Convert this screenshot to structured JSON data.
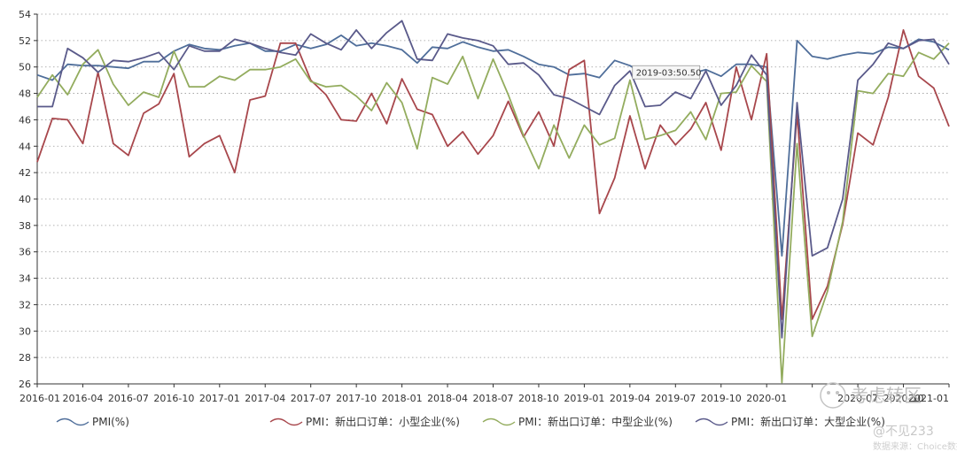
{
  "chart_data": {
    "type": "line",
    "grid": "horizontal-dotted",
    "ylim": [
      26,
      54
    ],
    "yticks": [
      26,
      28,
      30,
      32,
      34,
      36,
      38,
      40,
      42,
      44,
      46,
      48,
      50,
      52,
      54
    ],
    "x": [
      "2016-01",
      "2016-02",
      "2016-03",
      "2016-04",
      "2016-05",
      "2016-06",
      "2016-07",
      "2016-08",
      "2016-09",
      "2016-10",
      "2016-11",
      "2016-12",
      "2017-01",
      "2017-02",
      "2017-03",
      "2017-04",
      "2017-05",
      "2017-06",
      "2017-07",
      "2017-08",
      "2017-09",
      "2017-10",
      "2017-11",
      "2017-12",
      "2018-01",
      "2018-02",
      "2018-03",
      "2018-04",
      "2018-05",
      "2018-06",
      "2018-07",
      "2018-08",
      "2018-09",
      "2018-10",
      "2018-11",
      "2018-12",
      "2019-01",
      "2019-02",
      "2019-03",
      "2019-04",
      "2019-05",
      "2019-06",
      "2019-07",
      "2019-08",
      "2019-09",
      "2019-10",
      "2019-11",
      "2019-12",
      "2020-01",
      "2020-02",
      "2020-03",
      "2020-04",
      "2020-05",
      "2020-06",
      "2020-07",
      "2020-08",
      "2020-09",
      "2020-10",
      "2020-11",
      "2020-12",
      "2021-01"
    ],
    "xtick_labels": [
      "2016-01",
      "2016-04",
      "2016-07",
      "2016-10",
      "2017-01",
      "2017-04",
      "2017-07",
      "2017-10",
      "2018-01",
      "2018-04",
      "2018-07",
      "2018-10",
      "2019-01",
      "2019-04",
      "2019-07",
      "2019-10",
      "2020-01",
      "",
      "2020-07",
      "2020-10",
      "2021-01"
    ],
    "series": [
      {
        "name": "PMI(%)",
        "color": "#4f6e9a",
        "values": [
          49.4,
          49.0,
          50.2,
          50.1,
          50.1,
          50.0,
          49.9,
          50.4,
          50.4,
          51.2,
          51.7,
          51.4,
          51.3,
          51.6,
          51.8,
          51.2,
          51.2,
          51.7,
          51.4,
          51.7,
          52.4,
          51.6,
          51.8,
          51.6,
          51.3,
          50.3,
          51.5,
          51.4,
          51.9,
          51.5,
          51.2,
          51.3,
          50.8,
          50.2,
          50.0,
          49.4,
          49.5,
          49.2,
          50.5,
          50.1,
          49.4,
          49.4,
          49.7,
          49.5,
          49.8,
          49.3,
          50.2,
          50.2,
          50.0,
          35.7,
          52.0,
          50.8,
          50.6,
          50.9,
          51.1,
          51.0,
          51.5,
          51.4,
          52.1,
          51.9,
          51.3
        ]
      },
      {
        "name": "PMI：新出口订单：小型企业(%)",
        "color": "#a8474c",
        "values": [
          42.8,
          46.1,
          46.0,
          44.2,
          49.6,
          44.2,
          43.3,
          46.5,
          47.2,
          49.5,
          43.2,
          44.2,
          44.8,
          42.0,
          47.5,
          47.8,
          51.8,
          51.8,
          49.0,
          47.9,
          46.0,
          45.9,
          48.0,
          45.7,
          49.1,
          46.8,
          46.4,
          44.0,
          45.1,
          43.4,
          44.8,
          47.4,
          44.7,
          46.6,
          44.0,
          49.8,
          50.5,
          38.9,
          41.6,
          46.3,
          42.3,
          45.6,
          44.1,
          45.3,
          47.3,
          43.7,
          50.0,
          46.0,
          51.0,
          30.9,
          46.5,
          30.9,
          33.4,
          38.1,
          45.0,
          44.1,
          47.7,
          52.8,
          49.3,
          48.4,
          45.5
        ]
      },
      {
        "name": "PMI：新出口订单：中型企业(%)",
        "color": "#93ac5e",
        "values": [
          47.7,
          49.4,
          47.9,
          50.2,
          51.3,
          48.7,
          47.1,
          48.1,
          47.7,
          51.2,
          48.5,
          48.5,
          49.3,
          49.0,
          49.8,
          49.8,
          50.0,
          50.6,
          48.9,
          48.5,
          48.6,
          47.8,
          46.7,
          48.8,
          47.3,
          43.8,
          49.2,
          48.7,
          50.8,
          47.6,
          50.6,
          47.9,
          44.8,
          42.3,
          45.6,
          43.1,
          45.6,
          44.1,
          44.6,
          49.0,
          44.5,
          44.8,
          45.2,
          46.6,
          44.5,
          48.0,
          48.1,
          50.1,
          48.9,
          26.1,
          44.2,
          29.6,
          33.0,
          38.3,
          48.2,
          48.0,
          49.5,
          49.3,
          51.1,
          50.6,
          51.8
        ]
      },
      {
        "name": "PMI：新出口订单：大型企业(%)",
        "color": "#5a5a8a",
        "values": [
          47.0,
          47.0,
          51.4,
          50.7,
          49.6,
          50.5,
          50.4,
          50.7,
          51.1,
          49.8,
          51.6,
          51.2,
          51.2,
          52.1,
          51.8,
          51.4,
          51.1,
          50.9,
          52.5,
          51.8,
          51.3,
          52.8,
          51.4,
          52.6,
          53.5,
          50.6,
          50.5,
          52.5,
          52.2,
          52.0,
          51.6,
          50.2,
          50.3,
          49.4,
          47.9,
          47.6,
          47.0,
          46.4,
          48.6,
          49.7,
          47.0,
          47.1,
          48.1,
          47.6,
          49.7,
          47.1,
          48.6,
          50.9,
          49.4,
          29.5,
          47.3,
          35.7,
          36.3,
          40.0,
          49.0,
          50.2,
          51.8,
          51.4,
          52.0,
          52.1,
          50.2
        ]
      }
    ],
    "tooltip_text": "2019-03:50.50",
    "tooltip_index": 38
  },
  "watermarks": {
    "logo": "考虑转区",
    "line1": "@不见233",
    "line2": "数据来源：Choice数据"
  }
}
